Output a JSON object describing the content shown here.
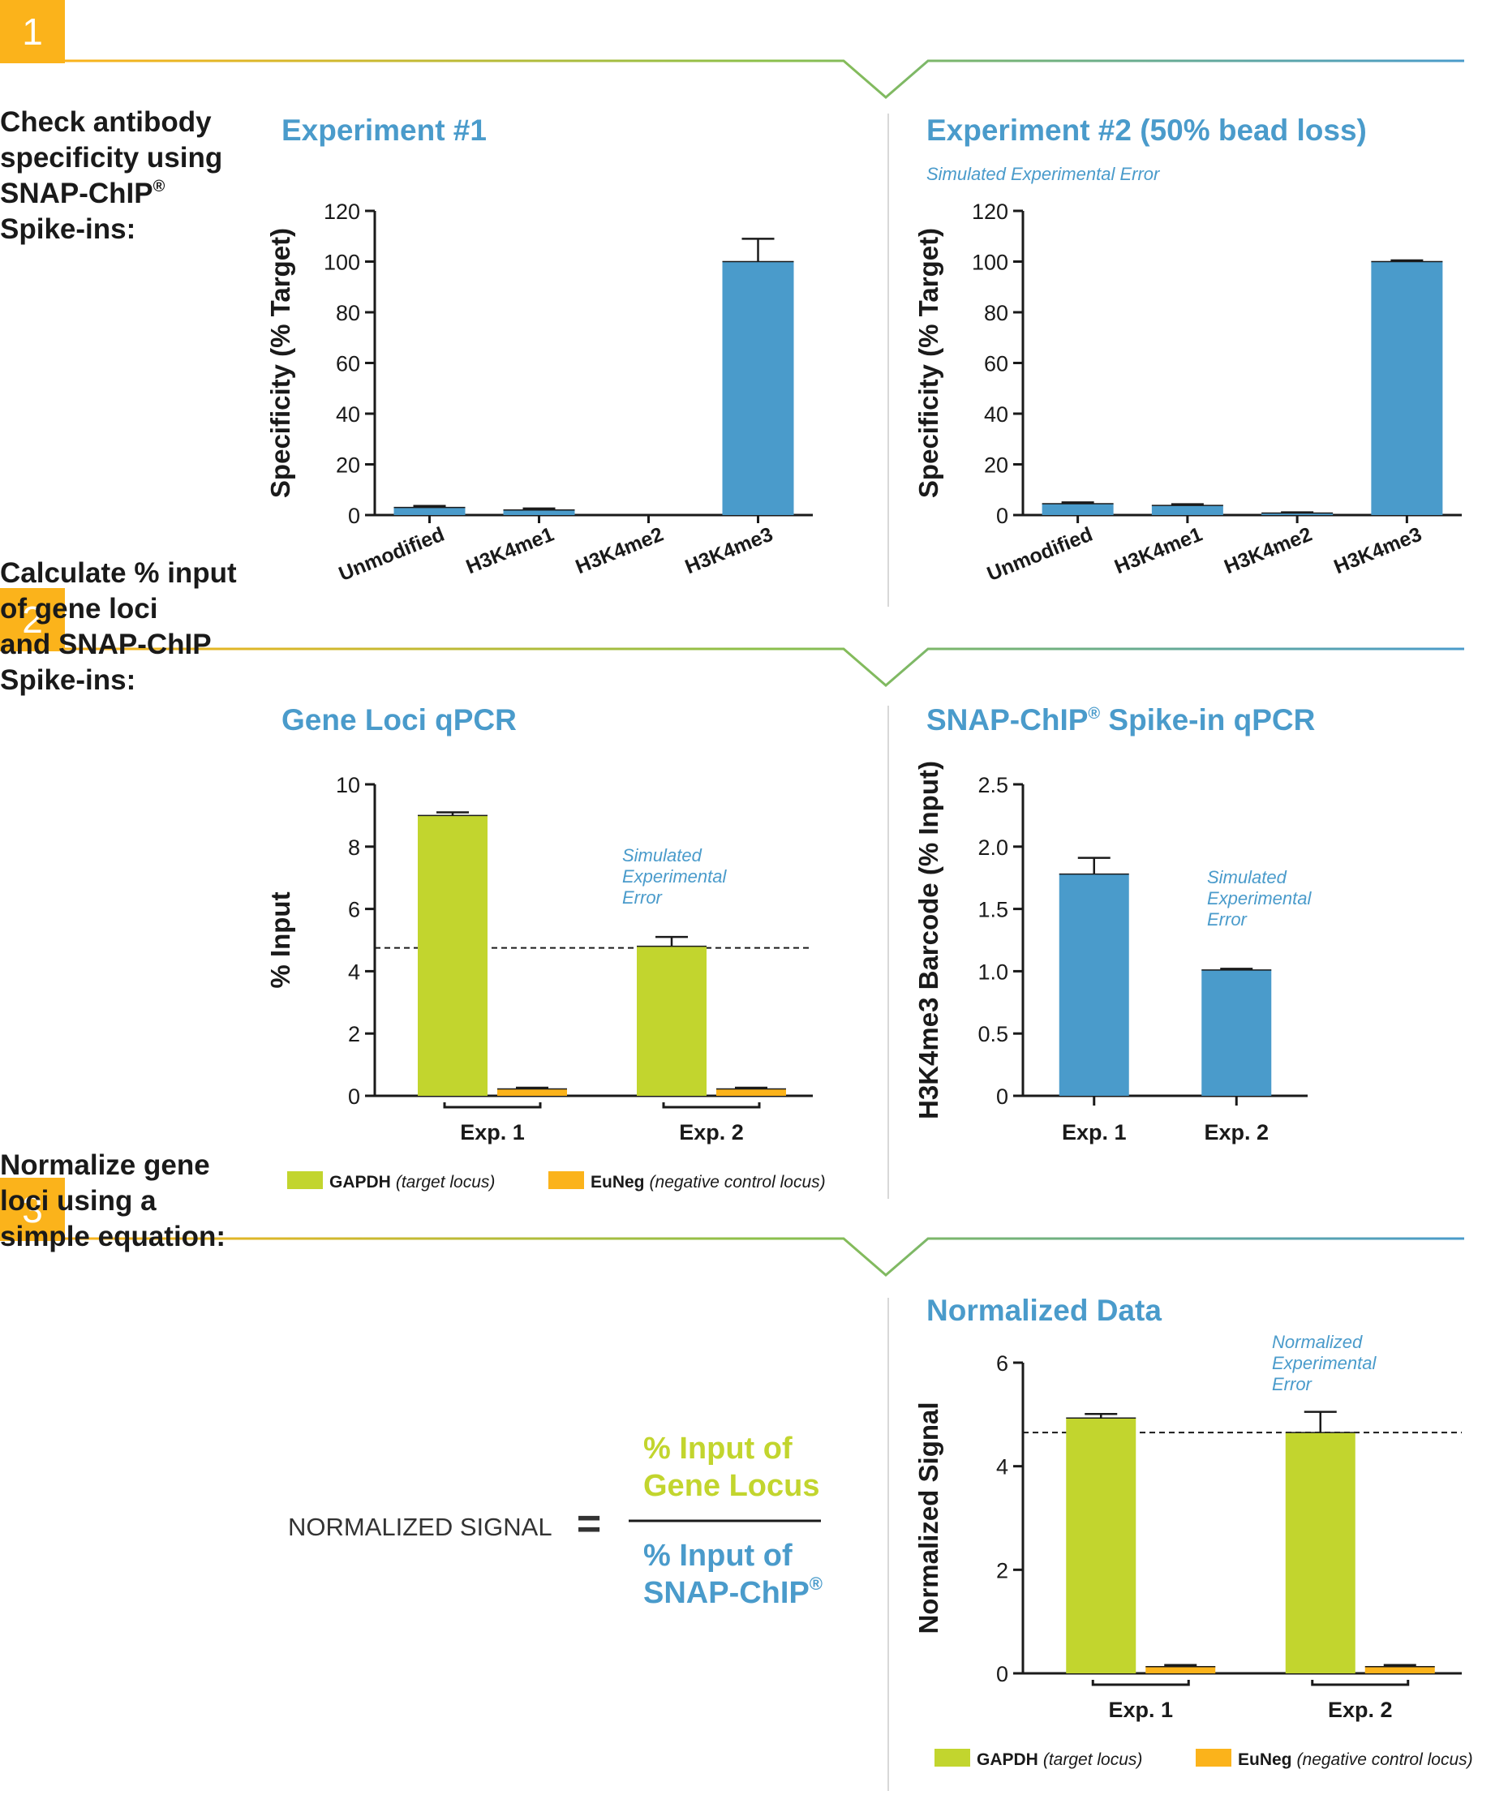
{
  "colors": {
    "step_box": "#FBB31B",
    "blue": "#4A9BCB",
    "green": "#C2D52E",
    "orange": "#FBB31B",
    "text": "#1a1a1a",
    "divider": "#d8d8d8",
    "line_green": "#8CC04B"
  },
  "sections": [
    {
      "number": "1",
      "heading": [
        "Check antibody",
        "specificity using",
        "SNAP-ChIP",
        "Spike-ins:"
      ]
    },
    {
      "number": "2",
      "heading": [
        "Calculate % input",
        "of gene loci",
        "and SNAP-ChIP",
        "Spike-ins:"
      ]
    },
    {
      "number": "3",
      "heading": [
        "Normalize gene",
        "loci using a",
        "simple equation:"
      ]
    }
  ],
  "registered_mark": "®",
  "equation": {
    "lhs": "NORMALIZED SIGNAL",
    "equals": "=",
    "numerator": [
      "% Input of",
      "Gene Locus"
    ],
    "denominator": [
      "% Input of",
      "SNAP-ChIP"
    ]
  },
  "legend": {
    "gapdh_name": "GAPDH",
    "gapdh_note": "(target locus)",
    "euneg_name": "EuNeg",
    "euneg_note": "(negative control locus)"
  },
  "chart_data": [
    {
      "id": "exp1",
      "type": "bar",
      "title": "Experiment #1",
      "subtitle": "",
      "ylabel": "Specificity (% Target)",
      "ylim": [
        0,
        120
      ],
      "yticks": [
        0,
        20,
        40,
        60,
        80,
        100,
        120
      ],
      "categories": [
        "Unmodified",
        "H3K4me1",
        "H3K4me2",
        "H3K4me3"
      ],
      "series": [
        {
          "values": [
            3,
            2,
            0,
            100
          ],
          "errors": [
            0.6,
            0.6,
            0,
            9
          ]
        }
      ]
    },
    {
      "id": "exp2",
      "type": "bar",
      "title": "Experiment #2 (50% bead loss)",
      "subtitle": "Simulated Experimental Error",
      "ylabel": "Specificity (% Target)",
      "ylim": [
        0,
        120
      ],
      "yticks": [
        0,
        20,
        40,
        60,
        80,
        100,
        120
      ],
      "categories": [
        "Unmodified",
        "H3K4me1",
        "H3K4me2",
        "H3K4me3"
      ],
      "series": [
        {
          "values": [
            4.5,
            3.8,
            0.8,
            100
          ],
          "errors": [
            0.5,
            0.5,
            0.3,
            0.5
          ]
        }
      ]
    },
    {
      "id": "gene",
      "type": "bar",
      "title": "Gene Loci qPCR",
      "ylabel": "% Input",
      "ylim": [
        0,
        10
      ],
      "yticks": [
        0,
        2,
        4,
        6,
        8,
        10
      ],
      "categories": [
        "Exp. 1",
        "Exp. 2"
      ],
      "series": [
        {
          "name": "GAPDH",
          "values": [
            9.0,
            4.8
          ],
          "errors": [
            0.1,
            0.3
          ]
        },
        {
          "name": "EuNeg",
          "values": [
            0.22,
            0.22
          ],
          "errors": [
            0.04,
            0.04
          ]
        }
      ],
      "reference_line": 4.75,
      "annotation": [
        "Simulated",
        "Experimental",
        "Error"
      ]
    },
    {
      "id": "spike",
      "type": "bar",
      "title": "SNAP-ChIP Spike-in qPCR",
      "ylabel": "H3K4me3 Barcode (% Input)",
      "ylim": [
        0,
        2.5
      ],
      "yticks": [
        "0",
        "0.5",
        "1.0",
        "1.5",
        "2.0",
        "2.5"
      ],
      "categories": [
        "Exp. 1",
        "Exp. 2"
      ],
      "series": [
        {
          "values": [
            1.78,
            1.01
          ],
          "errors": [
            0.13,
            0.01
          ]
        }
      ],
      "annotation": [
        "Simulated",
        "Experimental",
        "Error"
      ]
    },
    {
      "id": "norm",
      "type": "bar",
      "title": "Normalized Data",
      "ylabel": "Normalized Signal",
      "ylim": [
        0,
        6
      ],
      "yticks": [
        0,
        2,
        4,
        6
      ],
      "categories": [
        "Exp. 1",
        "Exp. 2"
      ],
      "series": [
        {
          "name": "GAPDH",
          "values": [
            4.93,
            4.65
          ],
          "errors": [
            0.08,
            0.4
          ]
        },
        {
          "name": "EuNeg",
          "values": [
            0.13,
            0.13
          ],
          "errors": [
            0.03,
            0.03
          ]
        }
      ],
      "reference_line": 4.65,
      "annotation": [
        "Normalized",
        "Experimental",
        "Error"
      ]
    }
  ]
}
